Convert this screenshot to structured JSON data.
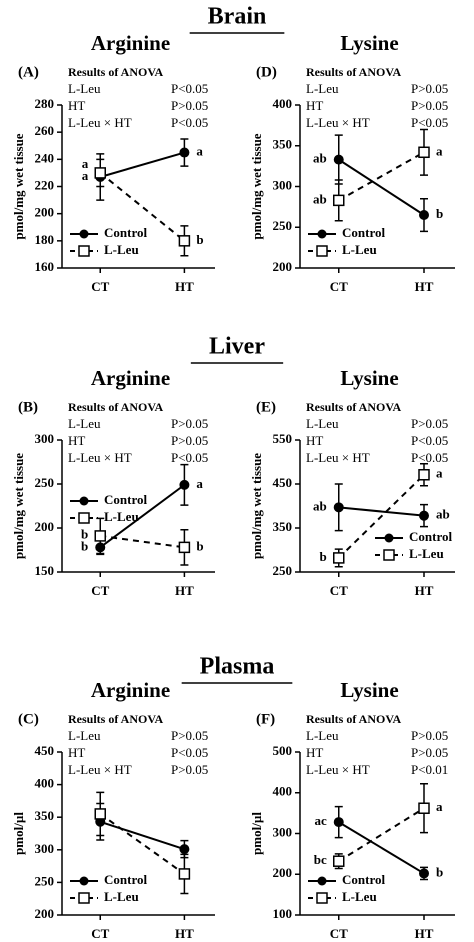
{
  "sections": [
    "Brain",
    "Liver",
    "Plasma"
  ],
  "chart_data": [
    {
      "type": "line",
      "panel": "(A)",
      "title": "Arginine",
      "anova_title": "Results of ANOVA",
      "anova": [
        [
          "L-Leu",
          "P<0.05"
        ],
        [
          "HT",
          "P>0.05"
        ],
        [
          "L-Leu × HT",
          "P<0.05"
        ]
      ],
      "ylabel": "pmol/mg wet tissue",
      "categories": [
        "CT",
        "HT"
      ],
      "ylim": [
        160,
        280
      ],
      "yticks": [
        160,
        180,
        200,
        220,
        240,
        260,
        280
      ],
      "legend": "lower left",
      "series": [
        {
          "name": "Control",
          "color": "#000000",
          "dash": "solid",
          "marker": "filled-circle",
          "values": [
            227,
            245
          ],
          "errors": [
            17,
            10
          ],
          "letters": [
            "a",
            "a"
          ]
        },
        {
          "name": "L-Leu",
          "color": "#000000",
          "dash": "dashed",
          "marker": "open-square",
          "values": [
            230,
            180
          ],
          "errors": [
            10,
            11
          ],
          "letters": [
            "a",
            "b"
          ]
        }
      ]
    },
    {
      "type": "line",
      "panel": "(D)",
      "title": "Lysine",
      "anova_title": "Results of ANOVA",
      "anova": [
        [
          "L-Leu",
          "P>0.05"
        ],
        [
          "HT",
          "P>0.05"
        ],
        [
          "L-Leu × HT",
          "P<0.05"
        ]
      ],
      "ylabel": "pmol/mg wet tissue",
      "categories": [
        "CT",
        "HT"
      ],
      "ylim": [
        200,
        400
      ],
      "yticks": [
        200,
        250,
        300,
        350,
        400
      ],
      "legend": "lower left",
      "series": [
        {
          "name": "Control",
          "color": "#000000",
          "dash": "solid",
          "marker": "filled-circle",
          "values": [
            333,
            265
          ],
          "errors": [
            30,
            20
          ],
          "letters": [
            "ab",
            "b"
          ]
        },
        {
          "name": "L-Leu",
          "color": "#000000",
          "dash": "dashed",
          "marker": "open-square",
          "values": [
            283,
            342
          ],
          "errors": [
            25,
            28
          ],
          "letters": [
            "ab",
            "a"
          ]
        }
      ]
    },
    {
      "type": "line",
      "panel": "(B)",
      "title": "Arginine",
      "anova_title": "Results of ANOVA",
      "anova": [
        [
          "L-Leu",
          "P>0.05"
        ],
        [
          "HT",
          "P>0.05"
        ],
        [
          "L-Leu × HT",
          "P<0.05"
        ]
      ],
      "ylabel": "pmol/mg wet tissue",
      "categories": [
        "CT",
        "HT"
      ],
      "ylim": [
        150,
        300
      ],
      "yticks": [
        150,
        200,
        250,
        300
      ],
      "legend": "center left",
      "series": [
        {
          "name": "Control",
          "color": "#000000",
          "dash": "solid",
          "marker": "filled-circle",
          "values": [
            178,
            249
          ],
          "errors": [
            8,
            23
          ],
          "letters": [
            "b",
            "a"
          ]
        },
        {
          "name": "L-Leu",
          "color": "#000000",
          "dash": "dashed",
          "marker": "open-square",
          "values": [
            191,
            178
          ],
          "errors": [
            20,
            20
          ],
          "letters": [
            "b",
            "b"
          ]
        }
      ]
    },
    {
      "type": "line",
      "panel": "(E)",
      "title": "Lysine",
      "anova_title": "Results of ANOVA",
      "anova": [
        [
          "L-Leu",
          "P>0.05"
        ],
        [
          "HT",
          "P<0.05"
        ],
        [
          "L-Leu × HT",
          "P<0.05"
        ]
      ],
      "ylabel": "pmol/mg wet tissue",
      "categories": [
        "CT",
        "HT"
      ],
      "ylim": [
        250,
        550
      ],
      "yticks": [
        250,
        350,
        450,
        550
      ],
      "legend": "lower right",
      "series": [
        {
          "name": "Control",
          "color": "#000000",
          "dash": "solid",
          "marker": "filled-circle",
          "values": [
            397,
            378
          ],
          "errors": [
            53,
            25
          ],
          "letters": [
            "ab",
            "ab"
          ]
        },
        {
          "name": "L-Leu",
          "color": "#000000",
          "dash": "dashed",
          "marker": "open-square",
          "values": [
            282,
            471
          ],
          "errors": [
            20,
            25
          ],
          "letters": [
            "b",
            "a"
          ]
        }
      ]
    },
    {
      "type": "line",
      "panel": "(C)",
      "title": "Arginine",
      "anova_title": "Results of ANOVA",
      "anova": [
        [
          "L-Leu",
          "P>0.05"
        ],
        [
          "HT",
          "P<0.05"
        ],
        [
          "L-Leu × HT",
          "P>0.05"
        ]
      ],
      "ylabel": "pmol/µl",
      "categories": [
        "CT",
        "HT"
      ],
      "ylim": [
        200,
        450
      ],
      "yticks": [
        200,
        250,
        300,
        350,
        400,
        450
      ],
      "legend": "lower left",
      "series": [
        {
          "name": "Control",
          "color": "#000000",
          "dash": "solid",
          "marker": "filled-circle",
          "values": [
            343,
            301
          ],
          "errors": [
            28,
            13
          ]
        },
        {
          "name": "L-Leu",
          "color": "#000000",
          "dash": "dashed",
          "marker": "open-square",
          "values": [
            355,
            263
          ],
          "errors": [
            33,
            30
          ]
        }
      ]
    },
    {
      "type": "line",
      "panel": "(F)",
      "title": "Lysine",
      "anova_title": "Results of ANOVA",
      "anova": [
        [
          "L-Leu",
          "P>0.05"
        ],
        [
          "HT",
          "P>0.05"
        ],
        [
          "L-Leu × HT",
          "P<0.01"
        ]
      ],
      "ylabel": "pmol/µl",
      "categories": [
        "CT",
        "HT"
      ],
      "ylim": [
        100,
        500
      ],
      "yticks": [
        100,
        200,
        300,
        400,
        500
      ],
      "legend": "lower left",
      "series": [
        {
          "name": "Control",
          "color": "#000000",
          "dash": "solid",
          "marker": "filled-circle",
          "values": [
            328,
            202
          ],
          "errors": [
            38,
            15
          ],
          "letters": [
            "ac",
            "b"
          ]
        },
        {
          "name": "L-Leu",
          "color": "#000000",
          "dash": "dashed",
          "marker": "open-square",
          "values": [
            232,
            362
          ],
          "errors": [
            18,
            60
          ],
          "letters": [
            "bc",
            "a"
          ]
        }
      ]
    }
  ]
}
